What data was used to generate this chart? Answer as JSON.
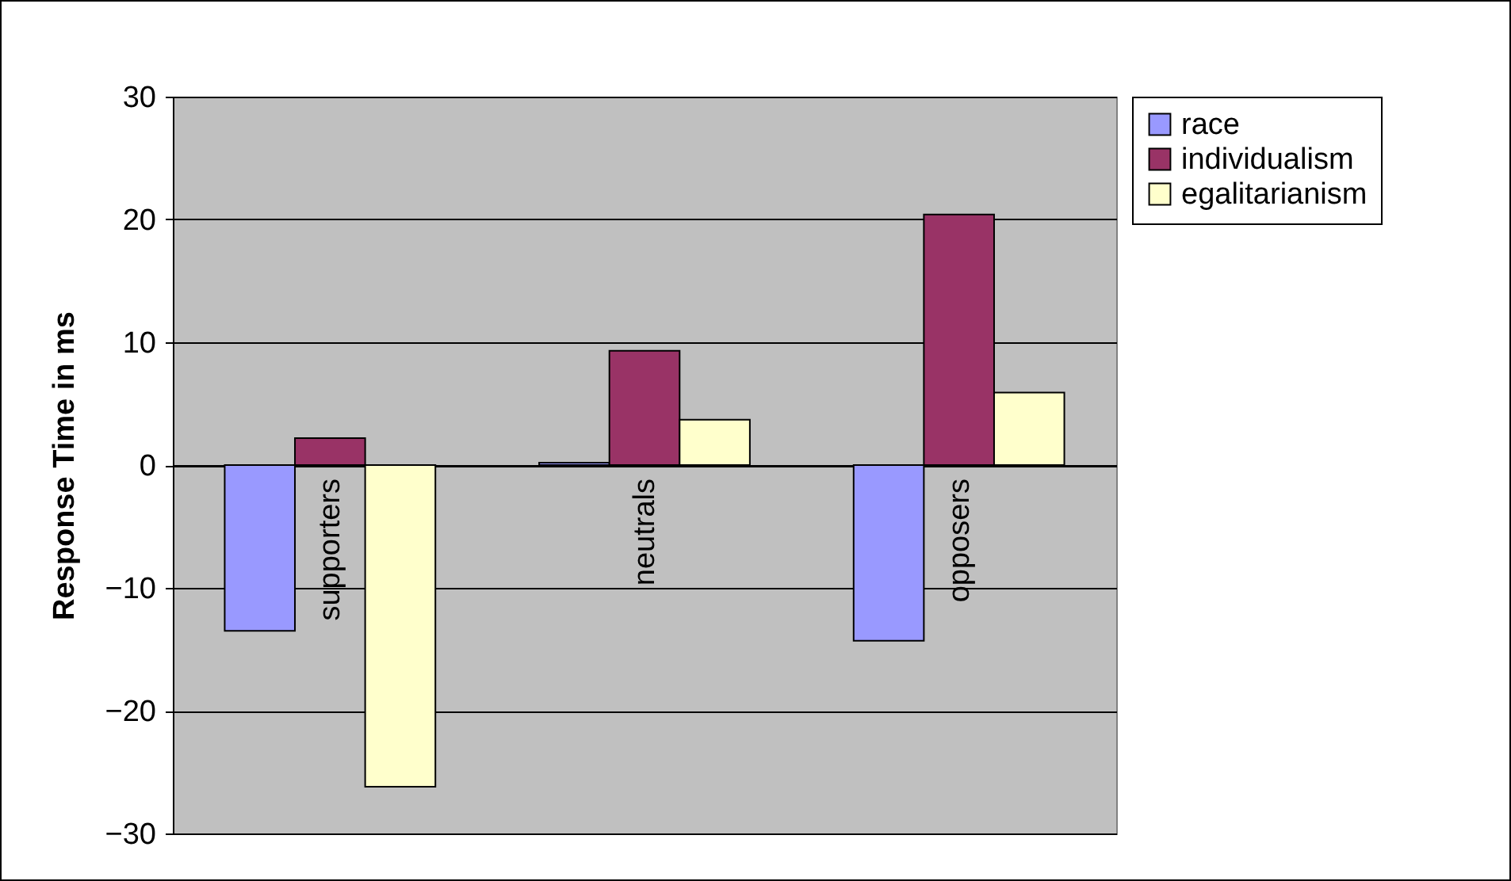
{
  "chart_data": {
    "type": "bar",
    "ylabel": "Response Time in ms",
    "categories": [
      "supporters",
      "neutrals",
      "opposers"
    ],
    "series": [
      {
        "name": "race",
        "color": "#9999ff",
        "values": [
          -13.5,
          0.2,
          -14.3
        ]
      },
      {
        "name": "individualism",
        "color": "#993366",
        "values": [
          2.2,
          9.3,
          20.4
        ]
      },
      {
        "name": "egalitarianism",
        "color": "#ffffcc",
        "values": [
          -26.2,
          3.7,
          5.9
        ]
      }
    ],
    "ylim": [
      -30,
      30
    ],
    "yticks": [
      -30,
      -20,
      -10,
      0,
      10,
      20,
      30
    ],
    "grid": "y",
    "legend": "right"
  }
}
